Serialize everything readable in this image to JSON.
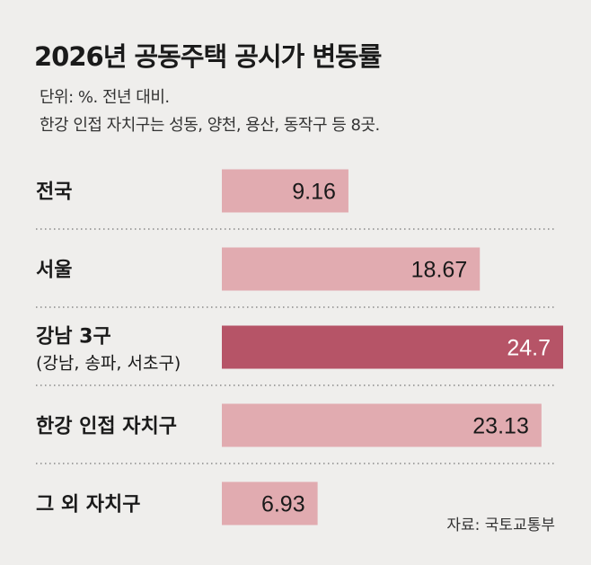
{
  "header": {
    "title": "2026년 공동주택 공시가 변동률",
    "subtitle_line1": "단위: %. 전년 대비.",
    "subtitle_line2": "한강 인접 자치구는 성동, 양천, 용산, 동작구 등 8곳."
  },
  "source": "자료: 국토교통부",
  "colors": {
    "bar_default": "#e1abb0",
    "bar_highlight": "#b65467",
    "text_highlight": "#ffffff",
    "text_default": "#1a1a1a",
    "divider": "#8a8a8a"
  },
  "chart_data": {
    "type": "bar",
    "orientation": "horizontal",
    "title": "2026년 공동주택 공시가 변동률",
    "xlabel": "",
    "ylabel": "",
    "grid": false,
    "xlim": [
      0,
      24.7
    ],
    "categories": [
      {
        "label": "전국",
        "sublabel": ""
      },
      {
        "label": "서울",
        "sublabel": ""
      },
      {
        "label": "강남 3구",
        "sublabel": "(강남, 송파, 서초구)"
      },
      {
        "label": "한강 인접 자치구",
        "sublabel": ""
      },
      {
        "label": "그 외 자치구",
        "sublabel": ""
      }
    ],
    "values": [
      9.16,
      18.67,
      24.7,
      23.13,
      6.93
    ],
    "value_labels": [
      "9.16",
      "18.67",
      "24.7",
      "23.13",
      "6.93"
    ],
    "highlight_index": 2
  }
}
